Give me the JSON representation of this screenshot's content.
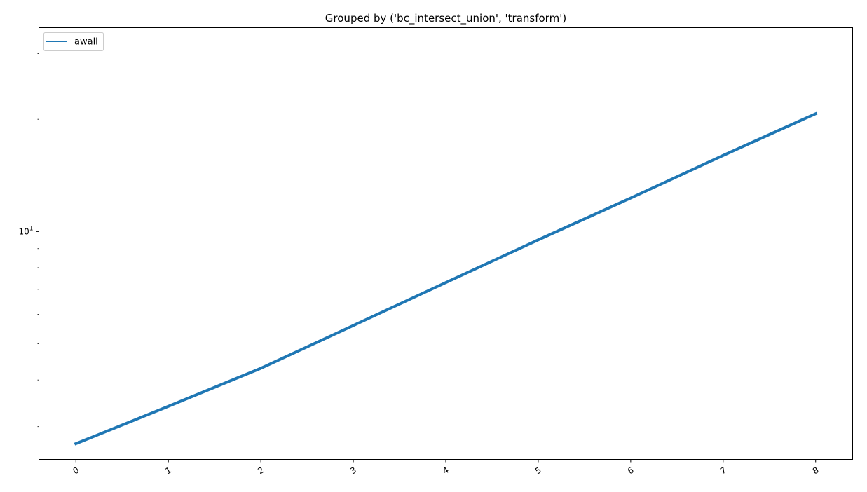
{
  "chart_data": {
    "type": "line",
    "title": "Grouped by ('bc_intersect_union', 'transform')",
    "xlabel": "",
    "ylabel": "",
    "yscale": "log",
    "x": [
      0,
      1,
      2,
      3,
      4,
      5,
      6,
      7,
      8
    ],
    "xtick_labels": [
      "0",
      "1",
      "2",
      "3",
      "4",
      "5",
      "6",
      "7",
      "8"
    ],
    "xlim": [
      -0.4,
      8.4
    ],
    "ylim": [
      2.45,
      35.2
    ],
    "ytick_major": [
      {
        "value": 10,
        "base": "10",
        "exponent": "1"
      }
    ],
    "ytick_minor": [
      3,
      4,
      5,
      6,
      7,
      8,
      9,
      20,
      30
    ],
    "grid": false,
    "legend_position": "top-left",
    "series": [
      {
        "name": "awali",
        "color": "#1f77b4",
        "values": [
          2.7,
          3.4,
          4.3,
          5.6,
          7.3,
          9.5,
          12.3,
          16.0,
          20.7
        ]
      }
    ]
  }
}
